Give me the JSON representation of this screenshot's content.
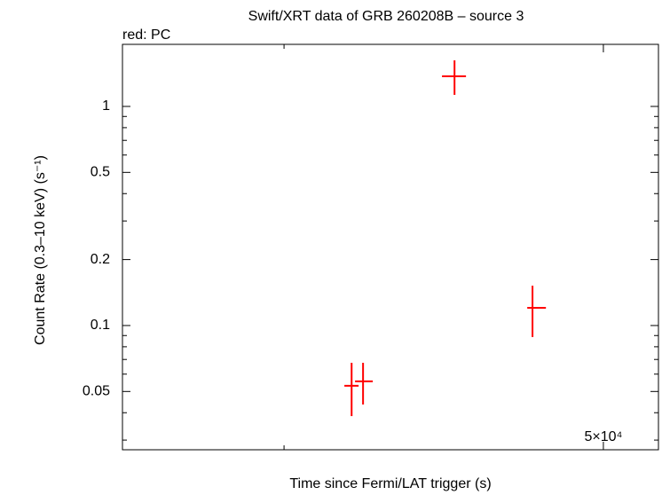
{
  "chart_data": {
    "type": "errorbar-scatter",
    "title": "Swift/XRT data of GRB 260208B – source 3",
    "subtitle": "red: PC",
    "xlabel": "Time since Fermi/LAT trigger (s)",
    "ylabel": "Count Rate (0.3–10 keV) (s⁻¹)",
    "xscale": "log",
    "yscale": "log",
    "xlim": [
      12580,
      58560
    ],
    "ylim": [
      0.0271,
      1.92
    ],
    "xticks": [
      {
        "value": 50000,
        "label": "5×10⁴"
      }
    ],
    "xminor_ticks": [
      20000
    ],
    "yticks": [
      0.05,
      0.1,
      0.2,
      0.5,
      1
    ],
    "yminor_ticks": [
      0.03,
      0.04,
      0.06,
      0.07,
      0.08,
      0.09,
      0.3,
      0.4,
      0.6,
      0.7,
      0.8,
      0.9
    ],
    "series": [
      {
        "color": "#ff0000",
        "x": [
          24280,
          25090,
          32620,
          40800
        ],
        "x_low": [
          23780,
          24520,
          31470,
          40190
        ],
        "x_high": [
          24770,
          25800,
          33710,
          42400
        ],
        "values": [
          0.0531,
          0.0556,
          1.373,
          0.1205
        ],
        "y_low": [
          0.0386,
          0.0436,
          1.129,
          0.0886
        ],
        "y_high": [
          0.0676,
          0.0676,
          1.623,
          0.152
        ]
      }
    ]
  }
}
